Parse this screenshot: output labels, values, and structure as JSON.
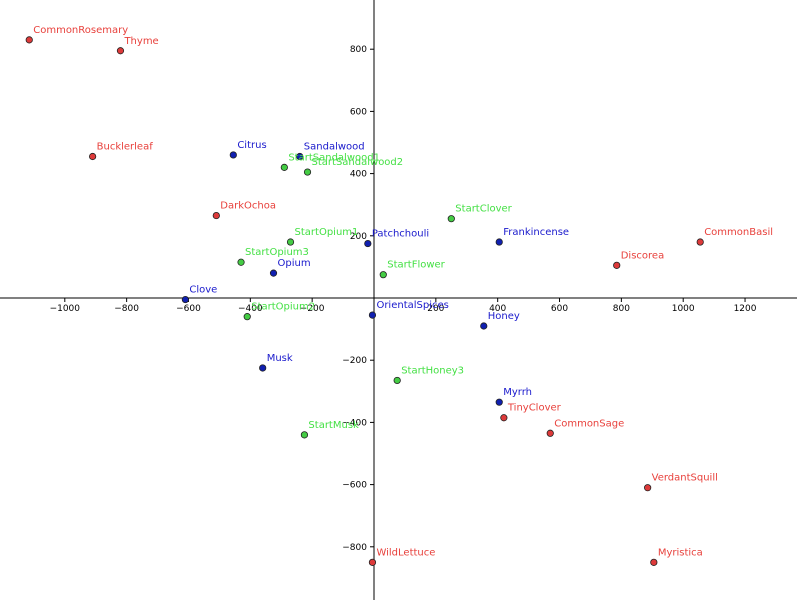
{
  "chart_data": {
    "type": "scatter",
    "title": "",
    "xlabel": "",
    "ylabel": "",
    "xlim": [
      -1200,
      1350
    ],
    "ylim": [
      -960,
      960
    ],
    "grid": false,
    "x_ticks": [
      -1000,
      -800,
      -600,
      -400,
      -200,
      200,
      400,
      600,
      800,
      1000,
      1200
    ],
    "x_tick_labels": [
      "−1000",
      "−800",
      "−600",
      "−400",
      "−200",
      "200",
      "400",
      "600",
      "800",
      "1000",
      "1200"
    ],
    "y_ticks": [
      800,
      600,
      400,
      200,
      -200,
      -400,
      -600,
      -800
    ],
    "y_tick_labels": [
      "800",
      "600",
      "400",
      "200",
      "−200",
      "−400",
      "−600",
      "−800"
    ],
    "series": [
      {
        "color": "#e04040",
        "fill": "#dd3a3a",
        "text_color": "#e8413c",
        "points": [
          {
            "label": "CommonRosemary",
            "x": -1115,
            "y": 830
          },
          {
            "label": "Thyme",
            "x": -820,
            "y": 795
          },
          {
            "label": "Bucklerleaf",
            "x": -910,
            "y": 455
          },
          {
            "label": "DarkOchoa",
            "x": -510,
            "y": 265
          },
          {
            "label": "CommonBasil",
            "x": 1055,
            "y": 180
          },
          {
            "label": "Discorea",
            "x": 785,
            "y": 105
          },
          {
            "label": "TinyClover",
            "x": 420,
            "y": -385
          },
          {
            "label": "CommonSage",
            "x": 570,
            "y": -435
          },
          {
            "label": "VerdantSquill",
            "x": 885,
            "y": -610
          },
          {
            "label": "WildLettuce",
            "x": -5,
            "y": -850
          },
          {
            "label": "Myristica",
            "x": 905,
            "y": -850
          }
        ]
      },
      {
        "color": "#0000cc",
        "fill": "#1020b0",
        "text_color": "#1a1acc",
        "points": [
          {
            "label": "Citrus",
            "x": -455,
            "y": 460
          },
          {
            "label": "Sandalwood",
            "x": -240,
            "y": 455
          },
          {
            "label": "Patchchouli",
            "x": -20,
            "y": 175
          },
          {
            "label": "Frankincense",
            "x": 405,
            "y": 180
          },
          {
            "label": "Opium",
            "x": -325,
            "y": 80
          },
          {
            "label": "Clove",
            "x": -610,
            "y": -5
          },
          {
            "label": "OrientalSpices",
            "x": -5,
            "y": -55
          },
          {
            "label": "Honey",
            "x": 355,
            "y": -90
          },
          {
            "label": "Musk",
            "x": -360,
            "y": -225
          },
          {
            "label": "Myrrh",
            "x": 405,
            "y": -335
          }
        ]
      },
      {
        "color": "#33dd33",
        "fill": "#44cc44",
        "text_color": "#44e044",
        "points": [
          {
            "label": "StartSandalwood1",
            "x": -290,
            "y": 420
          },
          {
            "label": "StartSandalwood2",
            "x": -215,
            "y": 405
          },
          {
            "label": "StartClover",
            "x": 250,
            "y": 255
          },
          {
            "label": "StartOpium1",
            "x": -270,
            "y": 180
          },
          {
            "label": "StartOpium3",
            "x": -430,
            "y": 115
          },
          {
            "label": "StartFlower",
            "x": 30,
            "y": 75
          },
          {
            "label": "StartOpium2",
            "x": -410,
            "y": -60
          },
          {
            "label": "StartHoney3",
            "x": 75,
            "y": -265
          },
          {
            "label": "StartMusk",
            "x": -225,
            "y": -440
          }
        ]
      }
    ]
  }
}
